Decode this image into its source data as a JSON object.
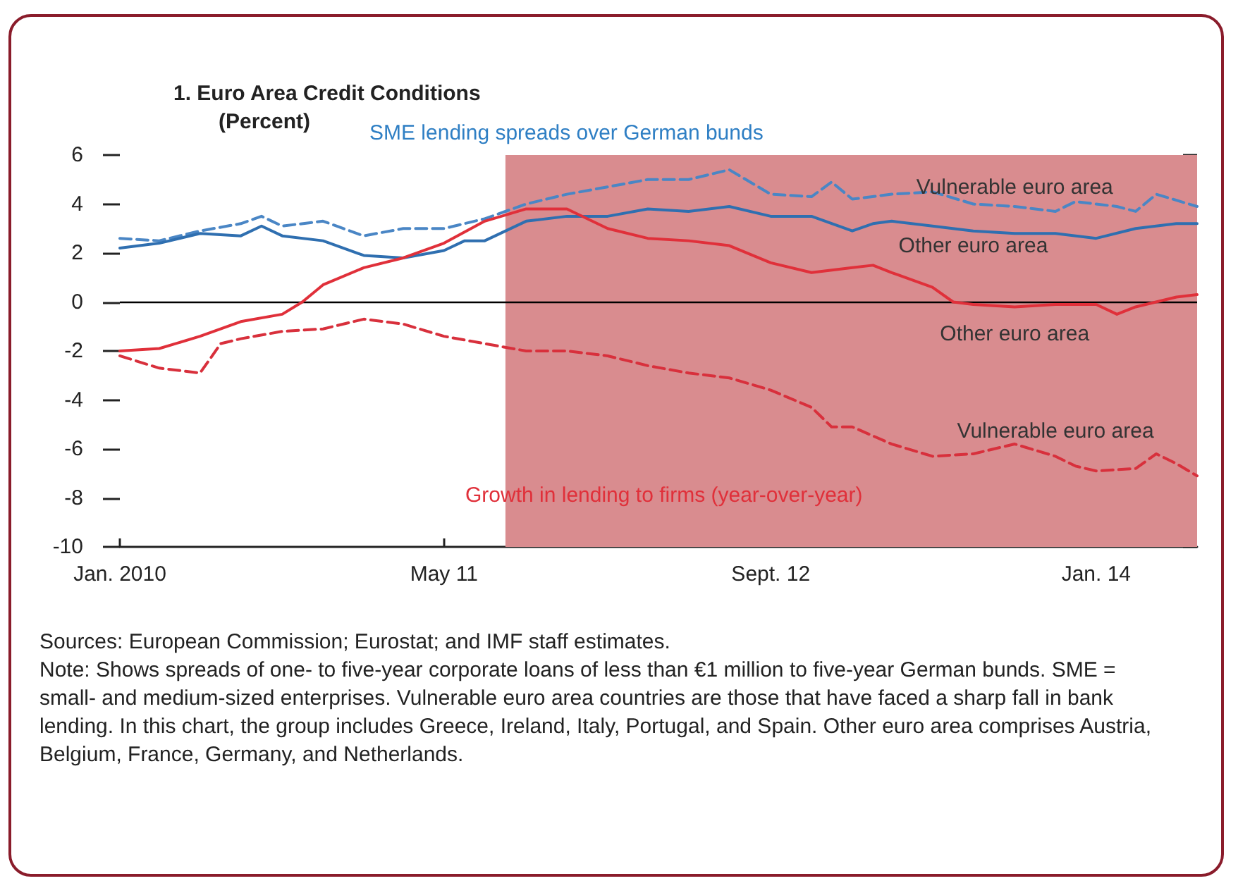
{
  "chart_data": {
    "type": "line",
    "title": "1. Euro Area Credit Conditions",
    "subtitle": "(Percent)",
    "annotations": [
      "SME lending spreads over German bunds",
      "Growth in lending to firms (year-over-year)",
      "Sources: European Commission; Eurostat; and IMF staff estimates.",
      "Note: Shows spreads of one- to five-year corporate loans of less than €1 million to five-year German bunds. SME = small- and medium-sized enterprises. Vulnerable euro area countries are those that have faced a sharp fall in bank lending. In this chart, the group includes Greece, Ireland, Italy, Portugal, and Spain. Other euro area comprises Austria, Belgium, France, Germany, and Netherlands."
    ],
    "xlim": [
      "2010-01",
      "2014-06"
    ],
    "xticks": [
      {
        "value": "2010-01",
        "label": "Jan. 2010"
      },
      {
        "value": "2011-05",
        "label": "May 11"
      },
      {
        "value": "2012-09",
        "label": "Sept. 12"
      },
      {
        "value": "2014-01",
        "label": "Jan. 14"
      }
    ],
    "ylim": [
      -10,
      6
    ],
    "yticks": [
      -10,
      -8,
      -6,
      -4,
      -2,
      0,
      2,
      4,
      6
    ],
    "grid": false,
    "legend": false,
    "marker": "none",
    "bands": [
      {
        "axis": "x",
        "from": "2011-08",
        "to": "2014-06",
        "color": "#d98c8f"
      }
    ],
    "ref_lines": [
      {
        "axis": "y",
        "value": 0,
        "color": "#000000"
      }
    ],
    "series": [
      {
        "name": "Vulnerable euro area",
        "color": "#4a86c5",
        "line_style": "dashed",
        "x": [
          "2010-01",
          "2010-03",
          "2010-05",
          "2010-07",
          "2010-08",
          "2010-09",
          "2010-11",
          "2011-01",
          "2011-03",
          "2011-05",
          "2011-07",
          "2011-09",
          "2011-11",
          "2012-01",
          "2012-03",
          "2012-05",
          "2012-07",
          "2012-09",
          "2012-11",
          "2012-12",
          "2013-01",
          "2013-03",
          "2013-05",
          "2013-07",
          "2013-09",
          "2013-11",
          "2013-12",
          "2014-02",
          "2014-03",
          "2014-04",
          "2014-06"
        ],
        "values": [
          2.6,
          2.5,
          2.9,
          3.2,
          3.5,
          3.1,
          3.3,
          2.7,
          3.0,
          3.0,
          3.4,
          4.0,
          4.4,
          4.7,
          5.0,
          5.0,
          5.4,
          4.4,
          4.3,
          4.9,
          4.2,
          4.4,
          4.5,
          4.0,
          3.9,
          3.7,
          4.1,
          3.9,
          3.7,
          4.4,
          3.9
        ]
      },
      {
        "name": "Other euro area",
        "color": "#2f6fb0",
        "line_style": "solid",
        "x": [
          "2010-01",
          "2010-03",
          "2010-05",
          "2010-07",
          "2010-08",
          "2010-09",
          "2010-11",
          "2011-01",
          "2011-03",
          "2011-05",
          "2011-06",
          "2011-07",
          "2011-09",
          "2011-11",
          "2012-01",
          "2012-03",
          "2012-05",
          "2012-07",
          "2012-09",
          "2012-11",
          "2013-01",
          "2013-02",
          "2013-03",
          "2013-05",
          "2013-07",
          "2013-09",
          "2013-11",
          "2014-01",
          "2014-03",
          "2014-05",
          "2014-06"
        ],
        "values": [
          2.2,
          2.4,
          2.8,
          2.7,
          3.1,
          2.7,
          2.5,
          1.9,
          1.8,
          2.1,
          2.5,
          2.5,
          3.3,
          3.5,
          3.5,
          3.8,
          3.7,
          3.9,
          3.5,
          3.5,
          2.9,
          3.2,
          3.3,
          3.1,
          2.9,
          2.8,
          2.8,
          2.6,
          3.0,
          3.2,
          3.2
        ]
      },
      {
        "name": "Other euro area",
        "color": "#e0303a",
        "line_style": "solid",
        "x": [
          "2010-01",
          "2010-03",
          "2010-05",
          "2010-07",
          "2010-09",
          "2010-10",
          "2010-11",
          "2011-01",
          "2011-03",
          "2011-05",
          "2011-07",
          "2011-09",
          "2011-11",
          "2012-01",
          "2012-03",
          "2012-05",
          "2012-07",
          "2012-09",
          "2012-11",
          "2013-01",
          "2013-02",
          "2013-03",
          "2013-05",
          "2013-06",
          "2013-07",
          "2013-09",
          "2013-11",
          "2014-01",
          "2014-02",
          "2014-03",
          "2014-05",
          "2014-06"
        ],
        "values": [
          -2.0,
          -1.9,
          -1.4,
          -0.8,
          -0.5,
          0.0,
          0.7,
          1.4,
          1.8,
          2.4,
          3.3,
          3.8,
          3.8,
          3.0,
          2.6,
          2.5,
          2.3,
          1.6,
          1.2,
          1.4,
          1.5,
          1.2,
          0.6,
          0.0,
          -0.1,
          -0.2,
          -0.1,
          -0.1,
          -0.5,
          -0.2,
          0.2,
          0.3
        ]
      },
      {
        "name": "Vulnerable euro area",
        "color": "#d8303c",
        "line_style": "dashed",
        "x": [
          "2010-01",
          "2010-03",
          "2010-05",
          "2010-06",
          "2010-07",
          "2010-09",
          "2010-11",
          "2011-01",
          "2011-03",
          "2011-05",
          "2011-07",
          "2011-09",
          "2011-11",
          "2012-01",
          "2012-03",
          "2012-05",
          "2012-07",
          "2012-09",
          "2012-11",
          "2012-12",
          "2013-01",
          "2013-03",
          "2013-05",
          "2013-07",
          "2013-09",
          "2013-11",
          "2013-12",
          "2014-01",
          "2014-03",
          "2014-04",
          "2014-05",
          "2014-06"
        ],
        "values": [
          -2.2,
          -2.7,
          -2.9,
          -1.7,
          -1.5,
          -1.2,
          -1.1,
          -0.7,
          -0.9,
          -1.4,
          -1.7,
          -2.0,
          -2.0,
          -2.2,
          -2.6,
          -2.9,
          -3.1,
          -3.6,
          -4.3,
          -5.1,
          -5.1,
          -5.8,
          -6.3,
          -6.2,
          -5.8,
          -6.3,
          -6.7,
          -6.9,
          -6.8,
          -6.2,
          -6.6,
          -7.1
        ]
      }
    ]
  }
}
